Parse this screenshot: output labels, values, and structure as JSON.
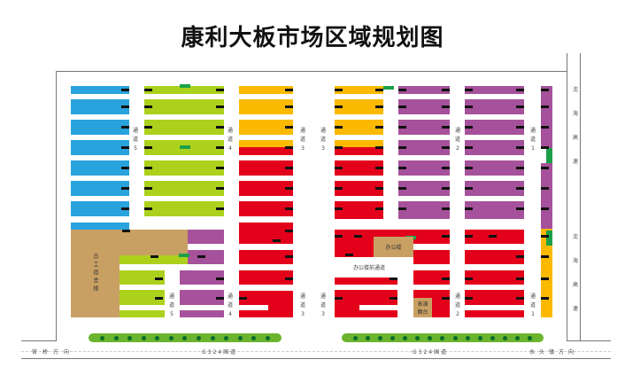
{
  "title": "康利大板市场区域规划图",
  "colors": {
    "blue": "#29a3dd",
    "green": "#acd11c",
    "orange": "#fbb900",
    "red": "#e3001b",
    "purple": "#a6519b",
    "brown": "#c9a063",
    "tag": "#1aa04a",
    "hedge": "#6bb42e"
  },
  "channels": {
    "c5": "通道5",
    "c4": "通道4",
    "c3": "通道3",
    "c2": "通道2",
    "c1": "通道1"
  },
  "buildings": {
    "dormitory": "员工宿舍楼",
    "office": "办公楼",
    "office_passage": "办公楼前通道",
    "stage": "表演舞台"
  },
  "roads": {
    "highway": "沈海高速",
    "national": "G324国道",
    "west_direction": "官桥方向",
    "east_direction": "水头镇方向"
  }
}
